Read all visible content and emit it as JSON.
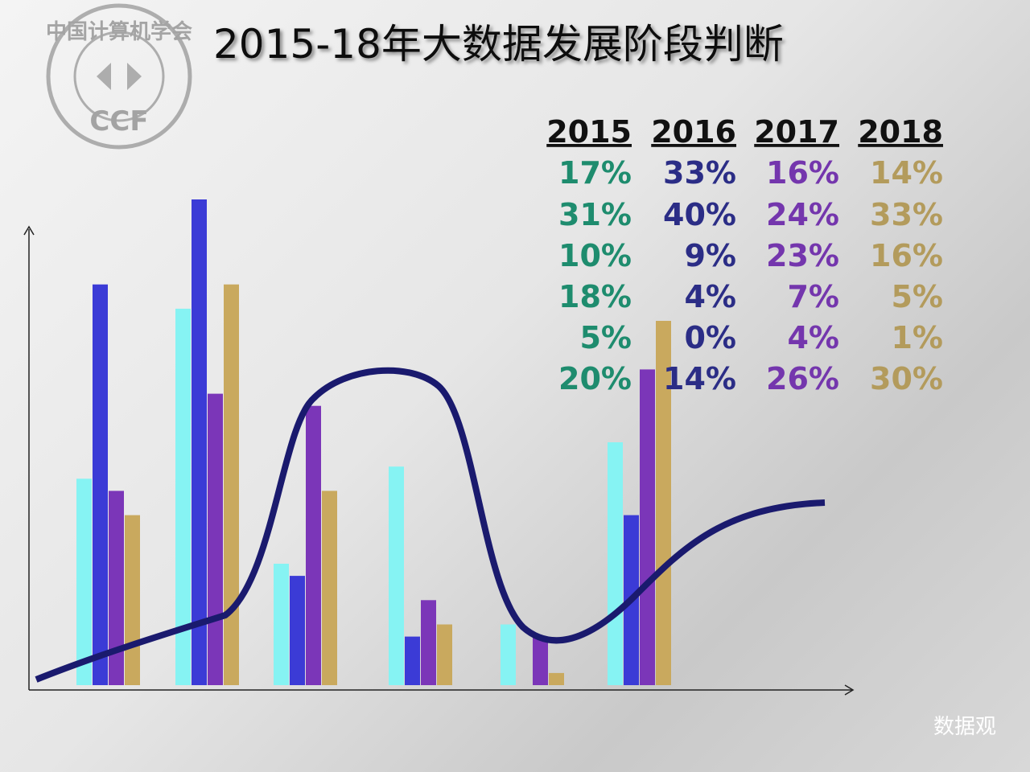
{
  "logo": {
    "name": "中国计算机学会",
    "abbr": "CCF"
  },
  "watermark": "数据观",
  "chart_data": {
    "type": "bar",
    "title": "2015-18年大数据发展阶段判断",
    "categories": [
      null,
      null,
      null,
      null,
      null,
      null
    ],
    "series": [
      {
        "name": "2015",
        "color": "#86f3f3",
        "label_color": "#1e8c6e",
        "values": [
          17,
          31,
          10,
          18,
          5,
          20
        ],
        "value_labels": [
          "17%",
          "31%",
          "10%",
          "18%",
          "5%",
          "20%"
        ]
      },
      {
        "name": "2016",
        "color": "#3b3bd6",
        "label_color": "#2b2d86",
        "values": [
          33,
          40,
          9,
          4,
          0,
          14
        ],
        "value_labels": [
          "33%",
          "40%",
          "9%",
          "4%",
          "0%",
          "14%"
        ]
      },
      {
        "name": "2017",
        "color": "#7b36b8",
        "label_color": "#7436ad",
        "values": [
          16,
          24,
          23,
          7,
          4,
          26
        ],
        "value_labels": [
          "16%",
          "24%",
          "23%",
          "7%",
          "4%",
          "26%"
        ]
      },
      {
        "name": "2018",
        "color": "#c9a95e",
        "label_color": "#b39b5c",
        "values": [
          14,
          33,
          16,
          5,
          1,
          30
        ],
        "value_labels": [
          "14%",
          "33%",
          "16%",
          "5%",
          "1%",
          "30%"
        ]
      }
    ]
  }
}
